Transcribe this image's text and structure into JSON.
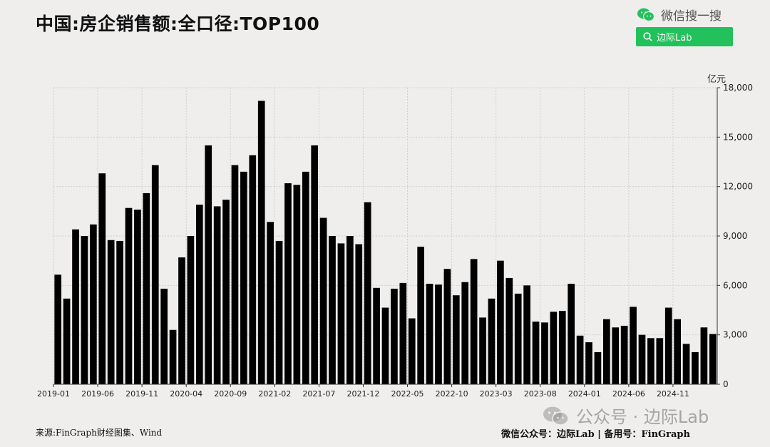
{
  "header": {
    "title": "中国:房企销售额:全口径:TOP100",
    "wechat_search_label": "微信搜一搜",
    "search_button_label": "边际Lab"
  },
  "watermark": {
    "text": "公众号 · 边际Lab"
  },
  "footer": {
    "source": "来源:FinGraph财经图集、Wind",
    "right": "微信公众号：边际Lab  |  备用号：FinGraph"
  },
  "colors": {
    "bar": "#000000",
    "background": "#efeeed",
    "grid": "#cfcfcf",
    "search_button": "#23c15c"
  },
  "chart_data": {
    "type": "bar",
    "title": "中国:房企销售额:全口径:TOP100",
    "unit": "亿元",
    "ylim": [
      0,
      18000
    ],
    "y_ticks": [
      "0",
      "3,000",
      "6,000",
      "9,000",
      "12,000",
      "15,000",
      "18,000"
    ],
    "y_tick_values": [
      0,
      3000,
      6000,
      9000,
      12000,
      15000,
      18000
    ],
    "grid": true,
    "y_axis_position": "right",
    "x_tick_labels": [
      "2019-01",
      "2019-06",
      "2019-11",
      "2020-04",
      "2020-09",
      "2021-02",
      "2021-07",
      "2021-12",
      "2022-05",
      "2022-10",
      "2023-03",
      "2023-08",
      "2024-01",
      "2024-06",
      "2024-11"
    ],
    "categories": [
      "2019-01",
      "2019-02",
      "2019-03",
      "2019-04",
      "2019-05",
      "2019-06",
      "2019-07",
      "2019-08",
      "2019-09",
      "2019-10",
      "2019-11",
      "2019-12",
      "2020-01",
      "2020-02",
      "2020-03",
      "2020-04",
      "2020-05",
      "2020-06",
      "2020-07",
      "2020-08",
      "2020-09",
      "2020-10",
      "2020-11",
      "2020-12",
      "2021-01",
      "2021-02",
      "2021-03",
      "2021-04",
      "2021-05",
      "2021-06",
      "2021-07",
      "2021-08",
      "2021-09",
      "2021-10",
      "2021-11",
      "2021-12",
      "2022-01",
      "2022-02",
      "2022-03",
      "2022-04",
      "2022-05",
      "2022-06",
      "2022-07",
      "2022-08",
      "2022-09",
      "2022-10",
      "2022-11",
      "2022-12",
      "2023-01",
      "2023-02",
      "2023-03",
      "2023-04",
      "2023-05",
      "2023-06",
      "2023-07",
      "2023-08",
      "2023-09",
      "2023-10",
      "2023-11",
      "2023-12",
      "2024-01",
      "2024-02",
      "2024-03",
      "2024-04",
      "2024-05",
      "2024-06",
      "2024-07",
      "2024-08",
      "2024-09",
      "2024-10",
      "2024-11",
      "2024-12",
      "2025-01",
      "2025-02",
      "2025-03"
    ],
    "values": [
      6650,
      5200,
      9400,
      9000,
      9700,
      12800,
      8750,
      8700,
      10700,
      10600,
      11600,
      13300,
      5800,
      3300,
      7700,
      9000,
      10900,
      14500,
      10800,
      11200,
      13300,
      12900,
      13900,
      17200,
      9850,
      8700,
      12200,
      12100,
      12900,
      14500,
      10100,
      9000,
      8550,
      9000,
      8500,
      11050,
      5850,
      4650,
      5800,
      6150,
      4000,
      8350,
      6100,
      6050,
      7000,
      5400,
      6200,
      7600,
      4050,
      5200,
      7500,
      6450,
      5500,
      6000,
      3800,
      3750,
      4400,
      4450,
      6100,
      2950,
      2550,
      1950,
      3950,
      3450,
      3550,
      4700,
      3000,
      2800,
      2800,
      4650,
      3950,
      2450,
      1950,
      3450,
      3050
    ]
  }
}
